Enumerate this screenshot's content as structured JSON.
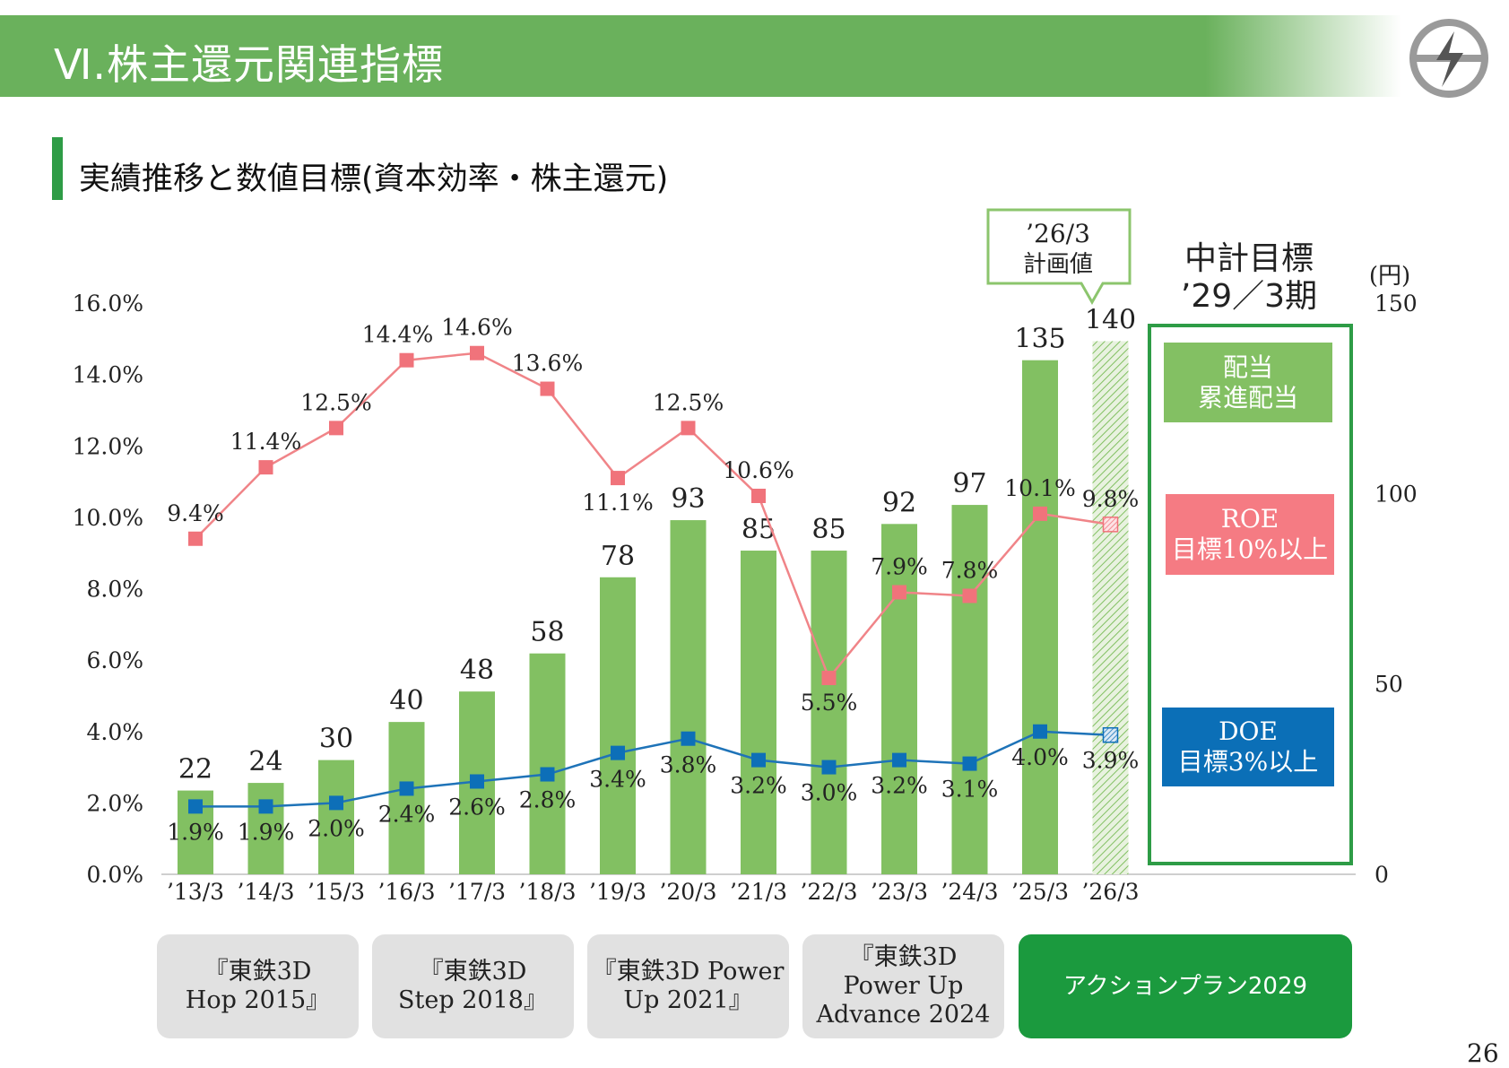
{
  "header": {
    "title": "Ⅵ.株主還元関連指標"
  },
  "subtitle": "実績推移と数値目標(資本効率・株主還元)",
  "callout": {
    "line1": "’26/3",
    "line2": "計画値"
  },
  "targets": {
    "title_line1": "中計目標",
    "title_line2": "’29／3期",
    "dividend": "配当\n累進配当",
    "roe": "ROE\n目標10%以上",
    "doe": "DOE\n目標3%以上"
  },
  "phases": [
    {
      "label": "『東鉄3D\nHop 2015』"
    },
    {
      "label": "『東鉄3D\nStep 2018』"
    },
    {
      "label": "『東鉄3D Power\nUp 2021』"
    },
    {
      "label": "『東鉄3D\nPower Up\nAdvance 2024"
    },
    {
      "label": "アクションプラン2029"
    }
  ],
  "page_number": "26",
  "colors": {
    "bar": "#82c062",
    "bar_plan_hatch": "#82c062",
    "roe_line": "#f08488",
    "roe_marker": "#f0737b",
    "doe_line": "#1e73b8",
    "doe_marker": "#0d6fb8",
    "target_frame": "#2e9c46",
    "dividend_box": "#83c063",
    "roe_box": "#f57b83",
    "doe_box": "#0b6fb7"
  },
  "chart_data": {
    "type": "bar+line",
    "categories": [
      "’13/3",
      "’14/3",
      "’15/3",
      "’16/3",
      "’17/3",
      "’18/3",
      "’19/3",
      "’20/3",
      "’21/3",
      "’22/3",
      "’23/3",
      "’24/3",
      "’25/3",
      "’26/3"
    ],
    "planned_index": 13,
    "series": [
      {
        "name": "配当",
        "kind": "bar",
        "axis": "right",
        "values": [
          22,
          24,
          30,
          40,
          48,
          58,
          78,
          93,
          85,
          85,
          92,
          97,
          135,
          140
        ],
        "labels": [
          "22",
          "24",
          "30",
          "40",
          "48",
          "58",
          "78",
          "93",
          "85",
          "85",
          "92",
          "97",
          "135",
          "140"
        ]
      },
      {
        "name": "ROE",
        "kind": "line",
        "axis": "left",
        "values": [
          9.4,
          11.4,
          12.5,
          14.4,
          14.6,
          13.6,
          11.1,
          12.5,
          10.6,
          5.5,
          7.9,
          7.8,
          10.1,
          9.8
        ],
        "labels": [
          "9.4%",
          "11.4%",
          "12.5%",
          "14.4%",
          "14.6%",
          "13.6%",
          "11.1%",
          "12.5%",
          "10.6%",
          "5.5%",
          "7.9%",
          "7.8%",
          "10.1%",
          "9.8%"
        ]
      },
      {
        "name": "DOE",
        "kind": "line",
        "axis": "left",
        "values": [
          1.9,
          1.9,
          2.0,
          2.4,
          2.6,
          2.8,
          3.4,
          3.8,
          3.2,
          3.0,
          3.2,
          3.1,
          4.0,
          3.9
        ],
        "labels": [
          "1.9%",
          "1.9%",
          "2.0%",
          "2.4%",
          "2.6%",
          "2.8%",
          "3.4%",
          "3.8%",
          "3.2%",
          "3.0%",
          "3.2%",
          "3.1%",
          "4.0%",
          "3.9%"
        ]
      }
    ],
    "y_left": {
      "min": 0,
      "max": 16,
      "ticks": [
        "0.0%",
        "2.0%",
        "4.0%",
        "6.0%",
        "8.0%",
        "10.0%",
        "12.0%",
        "14.0%",
        "16.0%"
      ]
    },
    "y_right": {
      "min": 0,
      "max": 150,
      "unit": "(円)",
      "ticks": [
        "0",
        "50",
        "100",
        "150"
      ]
    }
  }
}
